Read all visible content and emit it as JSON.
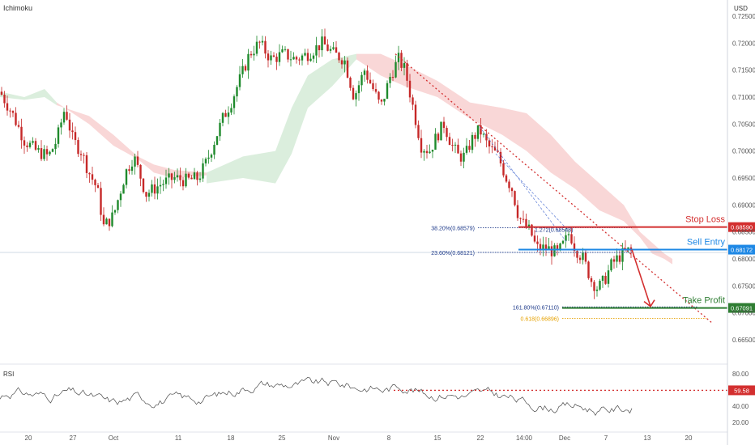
{
  "indicator_label": "Ichimoku",
  "currency_label": "USD",
  "rsi_label": "RSI",
  "colors": {
    "up": "#26a69a",
    "green": "#1e8a2c",
    "down": "#c62828",
    "cloud_bear": "#f7c9c9",
    "cloud_bull": "#cfe8d2",
    "stop": "#d32f2f",
    "entry": "#1e88e5",
    "tp": "#2e7d32",
    "fib_blue": "#1e3a8a",
    "fib_orange": "#e6a100"
  },
  "chart_data": {
    "type": "candlestick",
    "y_ticks": [
      "0.72500",
      "0.72000",
      "0.71500",
      "0.71000",
      "0.70500",
      "0.70000",
      "0.69500",
      "0.69000",
      "0.68500",
      "0.68000",
      "0.67500",
      "0.67000",
      "0.66500"
    ],
    "x_ticks": [
      "20",
      "27",
      "Oct",
      "11",
      "18",
      "25",
      "Nov",
      "8",
      "15",
      "22",
      "14:00",
      "Dec",
      "7",
      "13",
      "20"
    ],
    "rsi_ticks": [
      "80.00",
      "40.00",
      "20.00"
    ],
    "levels": [
      {
        "label": "Stop Loss",
        "price_label": "0.68590",
        "value": 0.6859
      },
      {
        "label": "Sell Entry",
        "price_label": "0.68172",
        "value": 0.68172
      },
      {
        "label": "Take Profit",
        "price_label": "0.67091",
        "value": 0.67091
      }
    ],
    "fib_labels": [
      {
        "text": "38.20%(0.68579)",
        "value": 0.68579
      },
      {
        "text": "23.60%(0.68121)",
        "value": 0.68121
      },
      {
        "text": "161.80%(0.67110)",
        "value": 0.6711
      },
      {
        "text": "0.618(0.66896)",
        "value": 0.66896
      },
      {
        "text": "1.272(0.68548)",
        "value": 0.68548
      }
    ],
    "rsi_level": {
      "label": "59.58",
      "value": 59.58
    },
    "ylim": [
      0.6635,
      0.7265
    ],
    "rsi_ylim": [
      15,
      85
    ]
  }
}
